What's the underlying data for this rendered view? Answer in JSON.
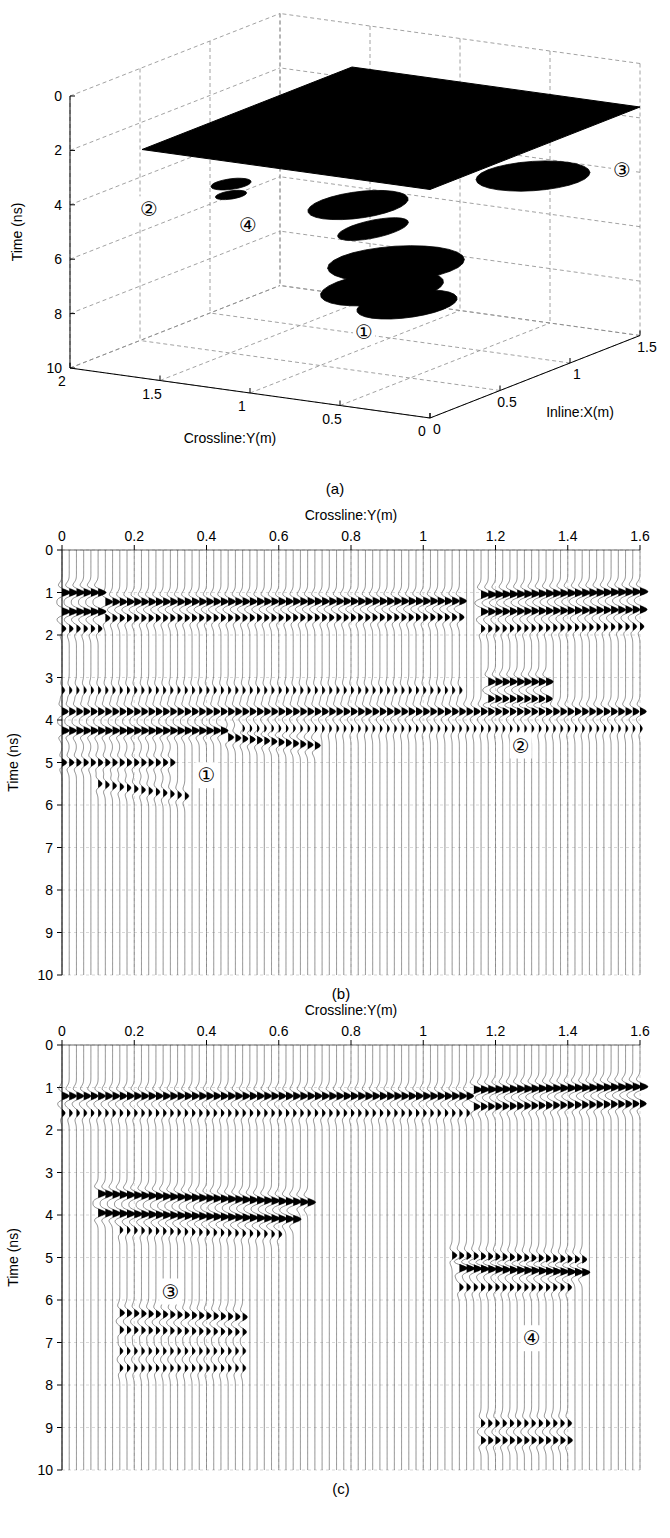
{
  "chart_data": [
    {
      "type": "isosurface3d",
      "title": "(a)",
      "xlabel": "Inline:X(m)",
      "ylabel": "Crossline:Y(m)",
      "zlabel": "Time (ns)",
      "xlim": [
        0,
        1.5
      ],
      "xticks": [
        0,
        0.5,
        1,
        1.5
      ],
      "ylim": [
        0,
        2
      ],
      "yticks": [
        0,
        0.5,
        1,
        1.5,
        2
      ],
      "zlim": [
        0,
        10
      ],
      "zticks": [
        0,
        2,
        4,
        6,
        8,
        10
      ],
      "grid": true,
      "color": "#000000",
      "surface": {
        "x": [
          0,
          1.5
        ],
        "y": [
          0,
          1.6
        ],
        "t": 1.6
      },
      "blobs": [
        {
          "x": 0.25,
          "y": 1.3,
          "t": 3.1,
          "rx": 0.1,
          "ry": 0.08
        },
        {
          "x": 0.25,
          "y": 1.3,
          "t": 3.5,
          "rx": 0.08,
          "ry": 0.06
        },
        {
          "x": 1.25,
          "y": 0.4,
          "t": 4.0,
          "rx": 0.25,
          "ry": 0.25
        },
        {
          "x": 0.9,
          "y": 1.1,
          "t": 5.0,
          "rx": 0.25,
          "ry": 0.2
        },
        {
          "x": 0.75,
          "y": 0.9,
          "t": 5.4,
          "rx": 0.2,
          "ry": 0.12
        },
        {
          "x": 0.4,
          "y": 0.5,
          "t": 5.6,
          "rx": 0.3,
          "ry": 0.3
        },
        {
          "x": 0.3,
          "y": 0.5,
          "t": 6.3,
          "rx": 0.3,
          "ry": 0.25
        },
        {
          "x": 0.35,
          "y": 0.4,
          "t": 6.9,
          "rx": 0.25,
          "ry": 0.2
        }
      ],
      "annotations": [
        {
          "text": "②",
          "x": 0.05,
          "y": 1.6,
          "t": 3.9
        },
        {
          "text": "③",
          "x": 1.5,
          "y": 0.1,
          "t": 4.0
        },
        {
          "text": "④",
          "x": 0.5,
          "y": 1.4,
          "t": 5.2
        },
        {
          "text": "①",
          "x": 0.3,
          "y": 0.6,
          "t": 8.0
        }
      ]
    },
    {
      "type": "wiggle",
      "title": "(b)",
      "xlabel": "Crossline:Y(m)",
      "ylabel": "Time (ns)",
      "xlim": [
        0,
        1.6
      ],
      "xticks": [
        0,
        0.2,
        0.4,
        0.6,
        0.8,
        1,
        1.2,
        1.4,
        1.6
      ],
      "ylim": [
        0,
        10
      ],
      "yticks": [
        0,
        1,
        2,
        3,
        4,
        5,
        6,
        7,
        8,
        9,
        10
      ],
      "grid": true,
      "color": "#000000",
      "trace_spacing": 0.02,
      "events": [
        {
          "y": [
            0,
            0.1
          ],
          "t": [
            1.0,
            1.0
          ],
          "amp": 1
        },
        {
          "y": [
            0,
            0.1
          ],
          "t": [
            1.45,
            1.45
          ],
          "amp": 1
        },
        {
          "y": [
            0,
            0.1
          ],
          "t": [
            1.85,
            1.85
          ],
          "amp": 0.5
        },
        {
          "y": [
            0.12,
            1.1
          ],
          "t": [
            1.22,
            1.2
          ],
          "amp": 0.9
        },
        {
          "y": [
            0.12,
            1.1
          ],
          "t": [
            1.6,
            1.58
          ],
          "amp": 0.6
        },
        {
          "y": [
            1.16,
            1.6
          ],
          "t": [
            1.05,
            0.98
          ],
          "amp": 1
        },
        {
          "y": [
            1.16,
            1.6
          ],
          "t": [
            1.45,
            1.4
          ],
          "amp": 0.9
        },
        {
          "y": [
            1.16,
            1.6
          ],
          "t": [
            1.85,
            1.8
          ],
          "amp": 0.5
        },
        {
          "y": [
            1.18,
            1.34
          ],
          "t": [
            3.1,
            3.1
          ],
          "amp": 0.9
        },
        {
          "y": [
            1.18,
            1.34
          ],
          "t": [
            3.5,
            3.5
          ],
          "amp": 0.8
        },
        {
          "y": [
            0,
            1.1
          ],
          "t": [
            3.3,
            3.3
          ],
          "amp": 0.35
        },
        {
          "y": [
            0,
            1.6
          ],
          "t": [
            3.8,
            3.8
          ],
          "amp": 0.8
        },
        {
          "y": [
            0,
            0.45
          ],
          "t": [
            4.25,
            4.25
          ],
          "amp": 0.9
        },
        {
          "y": [
            0.45,
            0.7
          ],
          "t": [
            4.4,
            4.6
          ],
          "amp": 0.7
        },
        {
          "y": [
            0.5,
            1.6
          ],
          "t": [
            4.2,
            4.2
          ],
          "amp": 0.3
        },
        {
          "y": [
            0,
            0.3
          ],
          "t": [
            5.0,
            5.0
          ],
          "amp": 0.6
        },
        {
          "y": [
            0.1,
            0.35
          ],
          "t": [
            5.5,
            5.8
          ],
          "amp": 0.5
        }
      ],
      "annotations": [
        {
          "text": "①",
          "x": 0.4,
          "y": 5.3
        },
        {
          "text": "②",
          "x": 1.27,
          "y": 4.6
        }
      ]
    },
    {
      "type": "wiggle",
      "title": "(c)",
      "xlabel": "Crossline:Y(m)",
      "ylabel": "Time (ns)",
      "xlim": [
        0,
        1.6
      ],
      "xticks": [
        0,
        0.2,
        0.4,
        0.6,
        0.8,
        1,
        1.2,
        1.4,
        1.6
      ],
      "ylim": [
        0,
        10
      ],
      "yticks": [
        0,
        1,
        2,
        3,
        4,
        5,
        6,
        7,
        8,
        9,
        10
      ],
      "grid": true,
      "color": "#000000",
      "trace_spacing": 0.02,
      "events": [
        {
          "y": [
            0,
            1.12
          ],
          "t": [
            1.2,
            1.2
          ],
          "amp": 0.9
        },
        {
          "y": [
            0,
            1.12
          ],
          "t": [
            1.6,
            1.6
          ],
          "amp": 0.4
        },
        {
          "y": [
            1.14,
            1.6
          ],
          "t": [
            1.05,
            0.98
          ],
          "amp": 1
        },
        {
          "y": [
            1.14,
            1.6
          ],
          "t": [
            1.45,
            1.38
          ],
          "amp": 0.8
        },
        {
          "y": [
            0.1,
            0.68
          ],
          "t": [
            3.5,
            3.7
          ],
          "amp": 1
        },
        {
          "y": [
            0.1,
            0.65
          ],
          "t": [
            3.95,
            4.1
          ],
          "amp": 1
        },
        {
          "y": [
            0.15,
            0.6
          ],
          "t": [
            4.35,
            4.45
          ],
          "amp": 0.4
        },
        {
          "y": [
            0.15,
            0.5
          ],
          "t": [
            6.3,
            6.4
          ],
          "amp": 0.6
        },
        {
          "y": [
            0.15,
            0.5
          ],
          "t": [
            6.7,
            6.75
          ],
          "amp": 0.5
        },
        {
          "y": [
            0.15,
            0.5
          ],
          "t": [
            7.2,
            7.2
          ],
          "amp": 0.4
        },
        {
          "y": [
            0.15,
            0.5
          ],
          "t": [
            7.6,
            7.6
          ],
          "amp": 0.4
        },
        {
          "y": [
            1.08,
            1.45
          ],
          "t": [
            4.95,
            5.05
          ],
          "amp": 0.6
        },
        {
          "y": [
            1.1,
            1.45
          ],
          "t": [
            5.25,
            5.35
          ],
          "amp": 1
        },
        {
          "y": [
            1.1,
            1.4
          ],
          "t": [
            5.7,
            5.7
          ],
          "amp": 0.5
        },
        {
          "y": [
            1.15,
            1.4
          ],
          "t": [
            8.9,
            8.9
          ],
          "amp": 0.5
        },
        {
          "y": [
            1.15,
            1.4
          ],
          "t": [
            9.3,
            9.3
          ],
          "amp": 0.6
        }
      ],
      "annotations": [
        {
          "text": "③",
          "x": 0.3,
          "y": 5.8
        },
        {
          "text": "④",
          "x": 1.3,
          "y": 6.9
        }
      ]
    }
  ]
}
